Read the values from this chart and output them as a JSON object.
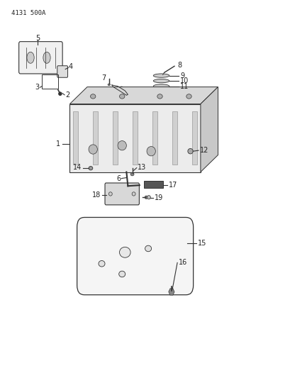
{
  "title_code": "4131 500A",
  "bg_color": "#ffffff",
  "line_color": "#333333",
  "label_color": "#222222"
}
